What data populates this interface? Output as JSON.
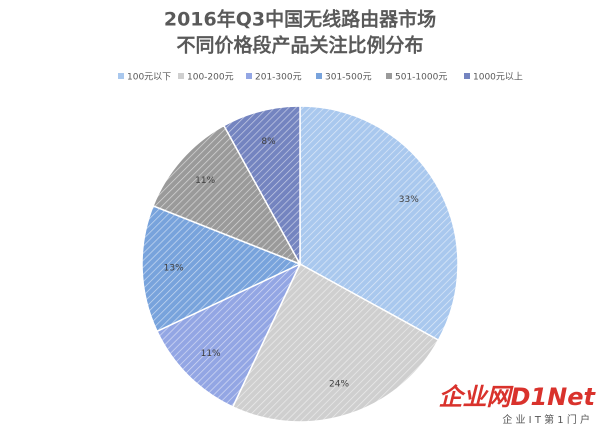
{
  "chart_data": {
    "type": "pie",
    "title": [
      "2016年Q3中国无线路由器市场",
      "不同价格段产品关注比例分布"
    ],
    "categories": [
      "100元以下",
      "100-200元",
      "201-300元",
      "301-500元",
      "501-1000元",
      "1000元以上"
    ],
    "values": [
      33,
      24,
      11,
      13,
      11,
      8
    ],
    "value_labels": [
      "33%",
      "24%",
      "11%",
      "13%",
      "11%",
      "8%"
    ],
    "colors": [
      "#a9c8ee",
      "#cfcfcf",
      "#93a6e4",
      "#78a3dc",
      "#9a9a9a",
      "#7484c0"
    ],
    "legend": "top",
    "watermark": "企业网D1Net",
    "watermark_subtitle": "企 业 I T 第 1 门 户"
  }
}
